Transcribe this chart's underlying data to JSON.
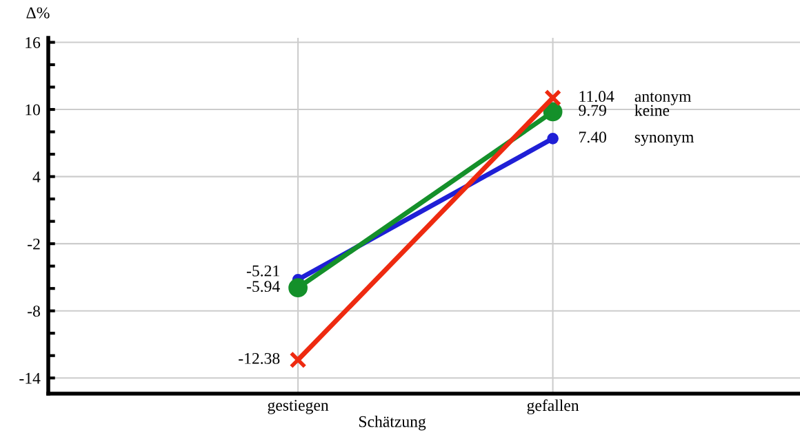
{
  "chart_data": {
    "type": "line",
    "xlabel": "Schätzung",
    "ylabel": "Δ%",
    "categories": [
      "gestiegen",
      "gefallen"
    ],
    "series": [
      {
        "name": "synonym",
        "color": "#1f1fd6",
        "values": [
          -5.21,
          7.4
        ],
        "value_labels": [
          "-5.21",
          "7.40"
        ],
        "marker": "circle"
      },
      {
        "name": "keine",
        "color": "#14902a",
        "values": [
          -5.94,
          9.79
        ],
        "value_labels": [
          "-5.94",
          "9.79"
        ],
        "marker": "circle"
      },
      {
        "name": "antonym",
        "color": "#ee2a10",
        "values": [
          -12.38,
          11.04
        ],
        "value_labels": [
          "-12.38",
          "11.04"
        ],
        "marker": "cross"
      }
    ],
    "ylim": [
      -15.4,
      16.4
    ],
    "yticks": [
      -14,
      {
        "value": -12,
        "label": null
      },
      {
        "value": -10,
        "label": null
      },
      -8,
      {
        "value": -6,
        "label": null
      },
      {
        "value": -4,
        "label": null
      },
      -2,
      {
        "value": 0,
        "label": null
      },
      {
        "value": 2,
        "label": null
      },
      4,
      {
        "value": 6,
        "label": null
      },
      {
        "value": 8,
        "label": null
      },
      10,
      {
        "value": 12,
        "label": null
      },
      {
        "value": 14,
        "label": null
      },
      16
    ],
    "grid": true,
    "legend": false,
    "line_style": "solid"
  }
}
